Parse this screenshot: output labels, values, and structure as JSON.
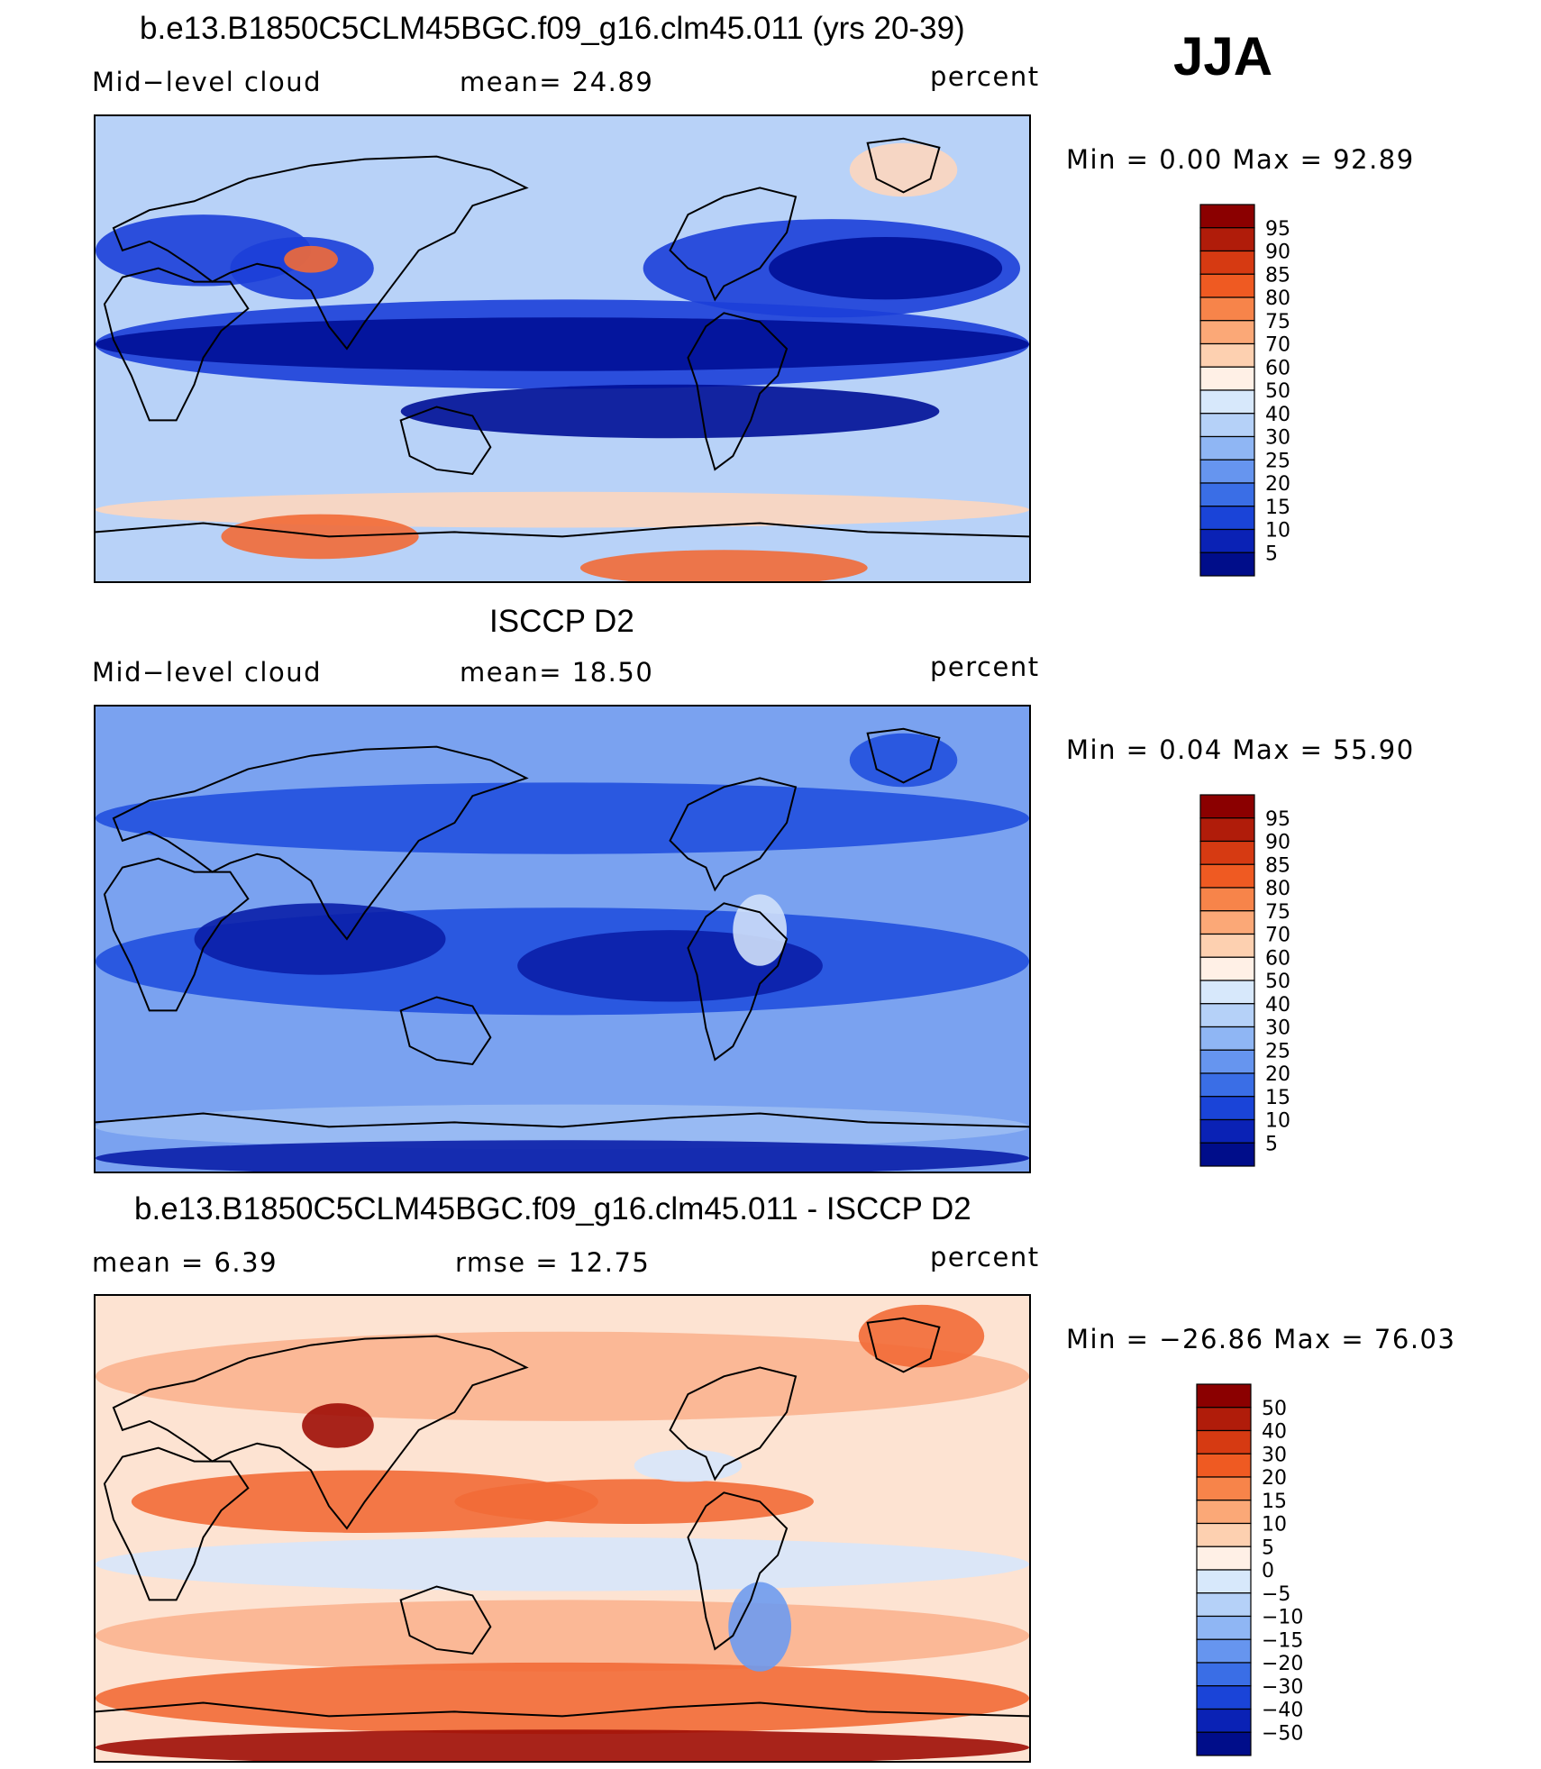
{
  "season": "JJA",
  "panels": [
    {
      "title": "b.e13.B1850C5CLM45BGC.f09_g16.clm45.011 (yrs 20-39)",
      "left_label": "Mid−level cloud",
      "center_label": "mean=   24.89",
      "units": "percent",
      "minmax": "Min =      0.00  Max =    92.89",
      "field": "model",
      "colorbar": {
        "labels": [
          "95",
          "90",
          "85",
          "80",
          "75",
          "70",
          "60",
          "50",
          "40",
          "30",
          "25",
          "20",
          "15",
          "10",
          "5"
        ],
        "colors": [
          "#8b0000",
          "#b01c0a",
          "#d63a12",
          "#ef5a22",
          "#f7844a",
          "#fba877",
          "#fdd0b0",
          "#fff0e6",
          "#d7e8fb",
          "#b5d1f8",
          "#8fb6f4",
          "#6695ef",
          "#3a6ee6",
          "#1a44d8",
          "#0a22b5",
          "#000d8a"
        ]
      },
      "palette": {
        "ocean": "#b8d2f8",
        "land": "#a7c6f5",
        "high": "#1c3fd8",
        "veryhigh": "#000f96",
        "warm": "#fdd6be",
        "hot": "#f26a36"
      }
    },
    {
      "title": "ISCCP D2",
      "left_label": "Mid−level cloud",
      "center_label": "mean=   18.50",
      "units": "percent",
      "minmax": "Min =      0.04  Max =    55.90",
      "field": "obs",
      "colorbar": {
        "labels": [
          "95",
          "90",
          "85",
          "80",
          "75",
          "70",
          "60",
          "50",
          "40",
          "30",
          "25",
          "20",
          "15",
          "10",
          "5"
        ],
        "colors": [
          "#8b0000",
          "#b01c0a",
          "#d63a12",
          "#ef5a22",
          "#f7844a",
          "#fba877",
          "#fdd0b0",
          "#fff0e6",
          "#d7e8fb",
          "#b5d1f8",
          "#8fb6f4",
          "#6695ef",
          "#3a6ee6",
          "#1a44d8",
          "#0a22b5",
          "#000d8a"
        ]
      },
      "palette": {
        "ocean": "#7aa2f0",
        "land": "#9bbcf3",
        "high": "#2150de",
        "veryhigh": "#0a1fa8",
        "warm": "#cfe0fa",
        "hot": "#b6cff7"
      }
    },
    {
      "title": "b.e13.B1850C5CLM45BGC.f09_g16.clm45.011 - ISCCP D2",
      "left_label": "mean =     6.39",
      "center_label": "rmse =    12.75",
      "units": "percent",
      "minmax": "Min = −26.86  Max =    76.03",
      "field": "diff",
      "colorbar": {
        "labels": [
          "50",
          "40",
          "30",
          "20",
          "15",
          "10",
          "5",
          "0",
          "−5",
          "−10",
          "−15",
          "−20",
          "−30",
          "−40",
          "−50"
        ],
        "colors": [
          "#8b0000",
          "#b01c0a",
          "#d63a12",
          "#ef5a22",
          "#f7844a",
          "#fba877",
          "#fdd0b0",
          "#fff0e6",
          "#d7e8fb",
          "#b5d1f8",
          "#8fb6f4",
          "#6695ef",
          "#3a6ee6",
          "#1a44d8",
          "#0a22b5",
          "#000d8a"
        ]
      },
      "palette": {
        "ocean": "#fde3d2",
        "land": "#d7e6fb",
        "high": "#f26a36",
        "veryhigh": "#9e0d06",
        "warm": "#fbb28f",
        "hot": "#6e9bf0"
      }
    }
  ]
}
